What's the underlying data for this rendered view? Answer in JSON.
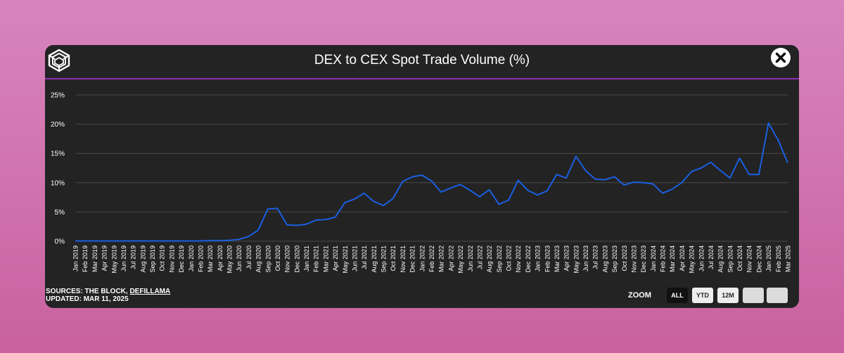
{
  "header": {
    "title": "DEX to CEX Spot Trade Volume (%)"
  },
  "footer": {
    "sources_prefix": "SOURCES: THE BLOCK, ",
    "sources_link": "DEFILLAMA",
    "updated": "UPDATED: MAR 11, 2025"
  },
  "zoom": {
    "label": "ZOOM",
    "buttons": [
      "ALL",
      "YTD",
      "12M",
      "",
      ""
    ],
    "active": "ALL"
  },
  "colors": {
    "line": "#1a5fe0",
    "grid": "#4a4a4a",
    "accent": "#8a2fb0",
    "background": "#232323"
  },
  "chart_data": {
    "type": "line",
    "title": "DEX to CEX Spot Trade Volume (%)",
    "xlabel": "",
    "ylabel": "",
    "ylim": [
      0,
      25
    ],
    "yticks": [
      "0%",
      "5%",
      "10%",
      "15%",
      "20%",
      "25%"
    ],
    "grid": true,
    "categories": [
      "Jan 2019",
      "Feb 2019",
      "Mar 2019",
      "Apr 2019",
      "May 2019",
      "Jun 2019",
      "Jul 2019",
      "Aug 2019",
      "Sep 2019",
      "Oct 2019",
      "Nov 2019",
      "Dec 2019",
      "Jan 2020",
      "Feb 2020",
      "Mar 2020",
      "Apr 2020",
      "May 2020",
      "Jun 2020",
      "Jul 2020",
      "Aug 2020",
      "Sep 2020",
      "Oct 2020",
      "Nov 2020",
      "Dec 2020",
      "Jan 2021",
      "Feb 2021",
      "Mar 2021",
      "Apr 2021",
      "May 2021",
      "Jun 2021",
      "Jul 2021",
      "Aug 2021",
      "Sep 2021",
      "Oct 2021",
      "Nov 2021",
      "Dec 2021",
      "Jan 2022",
      "Feb 2022",
      "Mar 2022",
      "Apr 2022",
      "May 2022",
      "Jun 2022",
      "Jul 2022",
      "Aug 2022",
      "Sep 2022",
      "Oct 2022",
      "Nov 2022",
      "Dec 2022",
      "Jan 2023",
      "Feb 2023",
      "Mar 2023",
      "Apr 2023",
      "May 2023",
      "Jun 2023",
      "Jul 2023",
      "Aug 2023",
      "Sep 2023",
      "Oct 2023",
      "Nov 2023",
      "Dec 2023",
      "Jan 2024",
      "Feb 2024",
      "Mar 2024",
      "Apr 2024",
      "May 2024",
      "Jun 2024",
      "Jul 2024",
      "Aug 2024",
      "Sep 2024",
      "Oct 2024",
      "Nov 2024",
      "Dec 2024",
      "Jan 2025",
      "Feb 2025",
      "Mar 2025"
    ],
    "series": [
      {
        "name": "DEX to CEX Spot Trade Volume (%)",
        "values": [
          0.05,
          0.05,
          0.05,
          0.05,
          0.05,
          0.05,
          0.05,
          0.05,
          0.05,
          0.05,
          0.05,
          0.05,
          0.05,
          0.05,
          0.1,
          0.1,
          0.15,
          0.3,
          0.8,
          1.9,
          5.5,
          5.6,
          2.8,
          2.7,
          2.9,
          3.6,
          3.7,
          4.1,
          6.6,
          7.2,
          8.2,
          6.8,
          6.1,
          7.3,
          10.2,
          11.0,
          11.3,
          10.3,
          8.4,
          9.1,
          9.7,
          8.7,
          7.6,
          8.8,
          6.3,
          7.0,
          10.4,
          8.7,
          7.9,
          8.6,
          11.4,
          10.8,
          14.5,
          12.1,
          10.6,
          10.5,
          11.0,
          9.6,
          10.1,
          10.0,
          9.8,
          8.2,
          8.9,
          10.0,
          11.9,
          12.5,
          13.5,
          12.1,
          10.8,
          14.2,
          11.4,
          11.4,
          20.2,
          17.3,
          13.4
        ]
      }
    ]
  }
}
